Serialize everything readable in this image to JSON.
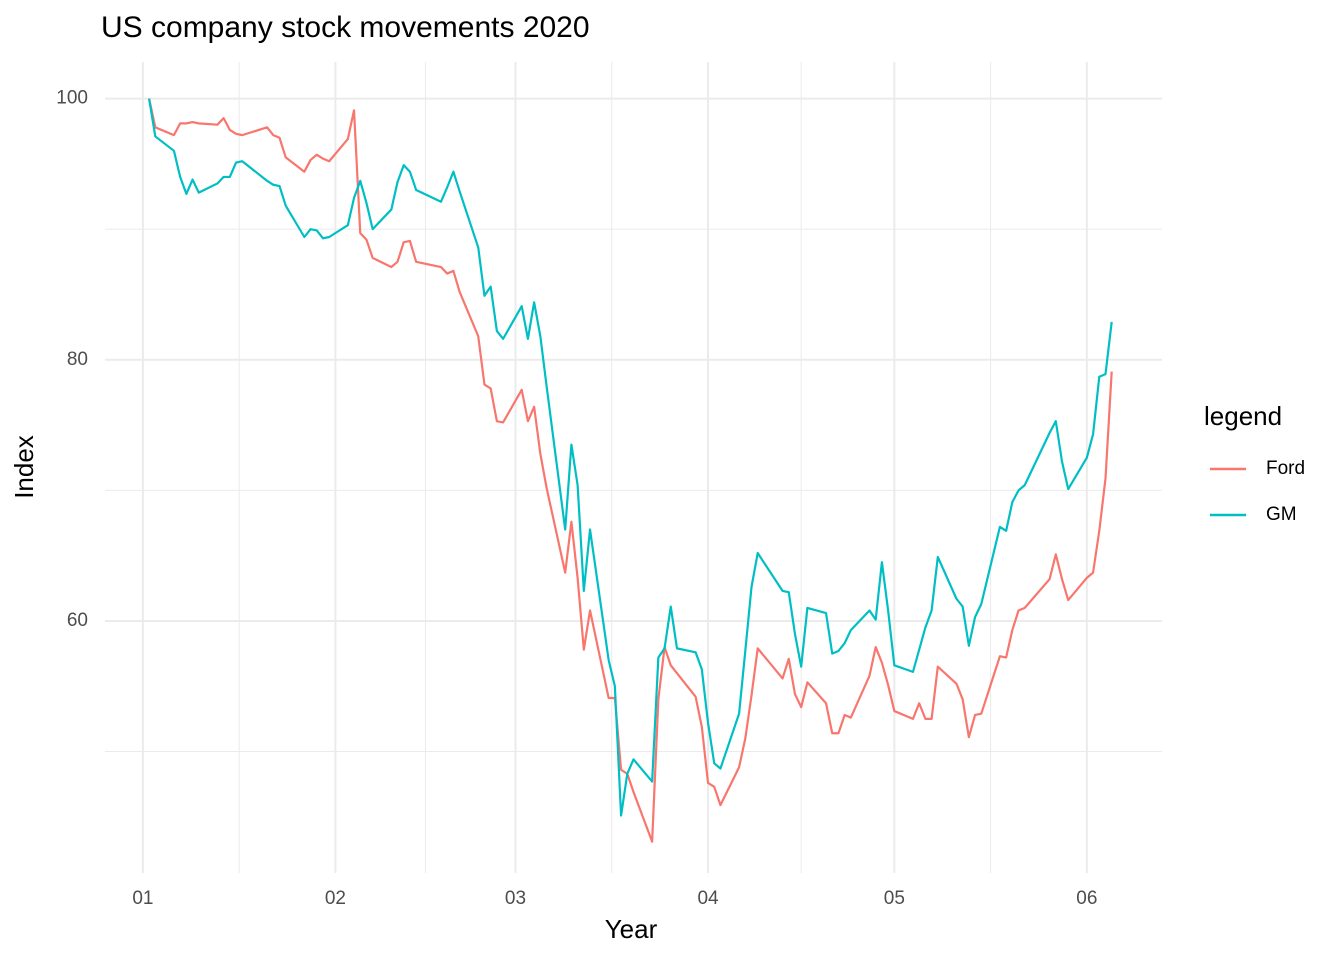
{
  "chart_data": {
    "type": "line",
    "title": "US company stock movements 2020",
    "x_label": "Year",
    "y_label": "Index",
    "legend_title": "legend",
    "legend_position": "right",
    "grid": true,
    "x": [
      2,
      3,
      6,
      7,
      8,
      9,
      10,
      13,
      14,
      15,
      16,
      17,
      21,
      22,
      23,
      24,
      27,
      28,
      29,
      30,
      31,
      34,
      35,
      36,
      37,
      38,
      41,
      42,
      43,
      44,
      45,
      49,
      50,
      51,
      52,
      55,
      56,
      57,
      58,
      59,
      62,
      63,
      64,
      65,
      66,
      69,
      70,
      71,
      72,
      73,
      76,
      77,
      78,
      79,
      80,
      83,
      84,
      85,
      86,
      87,
      90,
      91,
      92,
      93,
      94,
      97,
      98,
      99,
      100,
      104,
      105,
      106,
      107,
      108,
      111,
      112,
      113,
      114,
      115,
      118,
      119,
      120,
      121,
      122,
      125,
      126,
      127,
      128,
      129,
      132,
      133,
      134,
      135,
      136,
      139,
      140,
      141,
      142,
      143,
      147,
      148,
      149,
      150,
      153,
      154,
      155,
      156,
      157
    ],
    "series": [
      {
        "name": "Ford",
        "color": "#F8766D",
        "values": [
          100,
          97.8,
          97.2,
          98.1,
          98.1,
          98.2,
          98.1,
          98,
          98.5,
          97.6,
          97.3,
          97.2,
          97.8,
          97.2,
          97,
          95.5,
          94.4,
          95.3,
          95.7,
          95.4,
          95.2,
          96.9,
          99.1,
          89.7,
          89.2,
          87.8,
          87.1,
          87.5,
          89,
          89.1,
          87.5,
          87.1,
          86.6,
          86.8,
          85.2,
          81.8,
          78.1,
          77.8,
          75.3,
          75.2,
          77.7,
          75.3,
          76.4,
          72.8,
          70.2,
          63.7,
          67.6,
          63.3,
          57.8,
          60.8,
          54.1,
          54.1,
          48.6,
          48.3,
          46.9,
          43.1,
          54,
          58,
          56.6,
          56,
          54.2,
          51.9,
          47.6,
          47.3,
          45.9,
          48.8,
          51,
          54.3,
          57.9,
          55.6,
          57.1,
          54.4,
          53.4,
          55.3,
          53.7,
          51.4,
          51.4,
          52.8,
          52.6,
          55.8,
          58,
          56.8,
          55.1,
          53.1,
          52.5,
          53.7,
          52.5,
          52.5,
          56.5,
          55.2,
          54,
          51.1,
          52.8,
          52.9,
          57.3,
          57.2,
          59.3,
          60.8,
          61,
          63.2,
          65.1,
          63.2,
          61.6,
          63.3,
          63.7,
          66.9,
          70.9,
          79.1
        ]
      },
      {
        "name": "GM",
        "color": "#00BFC4",
        "values": [
          100,
          97.1,
          96,
          94,
          92.7,
          93.8,
          92.8,
          93.5,
          94,
          94,
          95.1,
          95.2,
          93.7,
          93.4,
          93.3,
          91.8,
          89.4,
          90,
          89.9,
          89.3,
          89.4,
          90.3,
          92.4,
          93.7,
          92,
          90,
          91.5,
          93.6,
          94.9,
          94.4,
          93,
          92.1,
          93.2,
          94.4,
          92.9,
          88.6,
          84.9,
          85.6,
          82.2,
          81.6,
          84.1,
          81.6,
          84.4,
          81.8,
          78,
          67,
          73.5,
          70.4,
          62.3,
          67,
          57,
          55,
          45.1,
          48.3,
          49.4,
          47.7,
          57.2,
          57.9,
          61.1,
          57.9,
          57.6,
          56.3,
          52.2,
          49.1,
          48.7,
          52.9,
          57.7,
          62.6,
          65.2,
          62.3,
          62.2,
          59,
          56.5,
          61,
          60.6,
          57.5,
          57.7,
          58.3,
          59.3,
          60.8,
          60.1,
          64.5,
          60.8,
          56.6,
          56.1,
          57.8,
          59.5,
          60.8,
          64.9,
          61.7,
          61.1,
          58.1,
          60.3,
          61.3,
          67.2,
          66.9,
          69.1,
          70,
          70.4,
          74.4,
          75.3,
          72.2,
          70.1,
          72.5,
          74.3,
          78.7,
          78.9,
          82.9
        ]
      }
    ],
    "xlim": [
      -5.1,
      165.1
    ],
    "ylim": [
      40.7,
      102.8
    ],
    "xticks": [
      {
        "value": 1,
        "label": "01"
      },
      {
        "value": 32,
        "label": "02"
      },
      {
        "value": 61,
        "label": "03"
      },
      {
        "value": 92,
        "label": "04"
      },
      {
        "value": 122,
        "label": "05"
      },
      {
        "value": 153,
        "label": "06"
      }
    ],
    "x_minor_ticks": [
      16.5,
      46.5,
      76.5,
      107,
      137.5
    ],
    "yticks": [
      60,
      80,
      100
    ],
    "y_minor_ticks": [
      50,
      70,
      90
    ]
  }
}
